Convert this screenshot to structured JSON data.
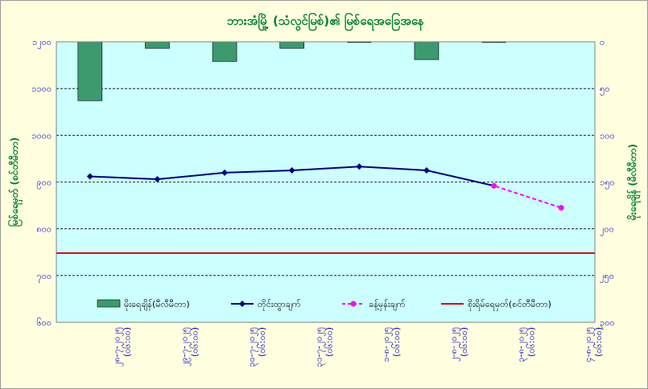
{
  "chart_data": {
    "type": "bar+line",
    "title": "ဘားအံမြို့ (သံလွင်မြစ်)၏ မြစ်ရေအခြေအနေ",
    "y_left_label": "မြစ်ရေမှတ် (စင်တီမီတာ)",
    "y_right_label": "မိုးရေချိန် (မီလီမီတာ)",
    "colors": {
      "plot_bg": "#ccffff",
      "rain": "#3c9a6e",
      "observed": "#000080",
      "forecast": "#ff00ff",
      "danger": "#e00000",
      "title": "#00802a",
      "axis_text": "#0000cc"
    },
    "y_left": {
      "min": 600,
      "max": 1200,
      "ticks": [
        600,
        700,
        800,
        900,
        1000,
        1100,
        1200
      ],
      "tick_labels": [
        "၆၀၀",
        "၇၀၀",
        "၈၀၀",
        "၉၀၀",
        "၁၀၀၀",
        "၁၁၀၀",
        "၁၂၀၀"
      ]
    },
    "y_right": {
      "min": 0,
      "max": 300,
      "inverted": true,
      "ticks": [
        0,
        50,
        100,
        150,
        200,
        250,
        300
      ],
      "tick_labels": [
        "၀",
        "၅၀",
        "၁၀၀",
        "၁၅၀",
        "၂၀၀",
        "၂၅၀",
        "၃၀၀"
      ]
    },
    "categories": [
      [
        "၂၈-၇-၂၀၂၅",
        "(၀၆:၀၀)"
      ],
      [
        "၂၉-၇-၂၀၂၅",
        "(၀၆:၀၀)"
      ],
      [
        "၃၀-၇-၂၀၂၅",
        "(၀၆:၀၀)"
      ],
      [
        "၃၁-၇-၂၀၂၅",
        "(၀၆:၀၀)"
      ],
      [
        "၁-၈-၂၀၂၅",
        "(၀၆:၀၀)"
      ],
      [
        "၂-၈-၂၀၂၅",
        "(၀၆:၀၀)"
      ],
      [
        "၃-၈-၂၀၂၅",
        "(၀၆:၀၀)"
      ],
      [
        "၄-၈-၂၀၂၅",
        "(၀၆:၀၀)"
      ]
    ],
    "series": [
      {
        "name": "မိုးရေချိန်(မီလီမီတာ)",
        "kind": "bar",
        "axis": "right",
        "values": [
          63,
          7,
          21,
          7,
          1,
          19,
          1,
          null
        ]
      },
      {
        "name": "တိုင်းထွာချက်",
        "kind": "line",
        "axis": "left",
        "values": [
          912,
          906,
          920,
          925,
          933,
          925,
          null,
          null
        ]
      },
      {
        "name": "ခန့်မှန်းချက်",
        "kind": "line-dashed",
        "axis": "left",
        "values": [
          null,
          null,
          null,
          null,
          null,
          null,
          892,
          845
        ]
      }
    ],
    "reference_line": {
      "name": "စိုးရိမ်ရေမှတ်(စင်တီမီတာ)",
      "value": 748,
      "axis": "left"
    },
    "grid": "horizontal dashed",
    "legend_position": "bottom inside plot"
  }
}
